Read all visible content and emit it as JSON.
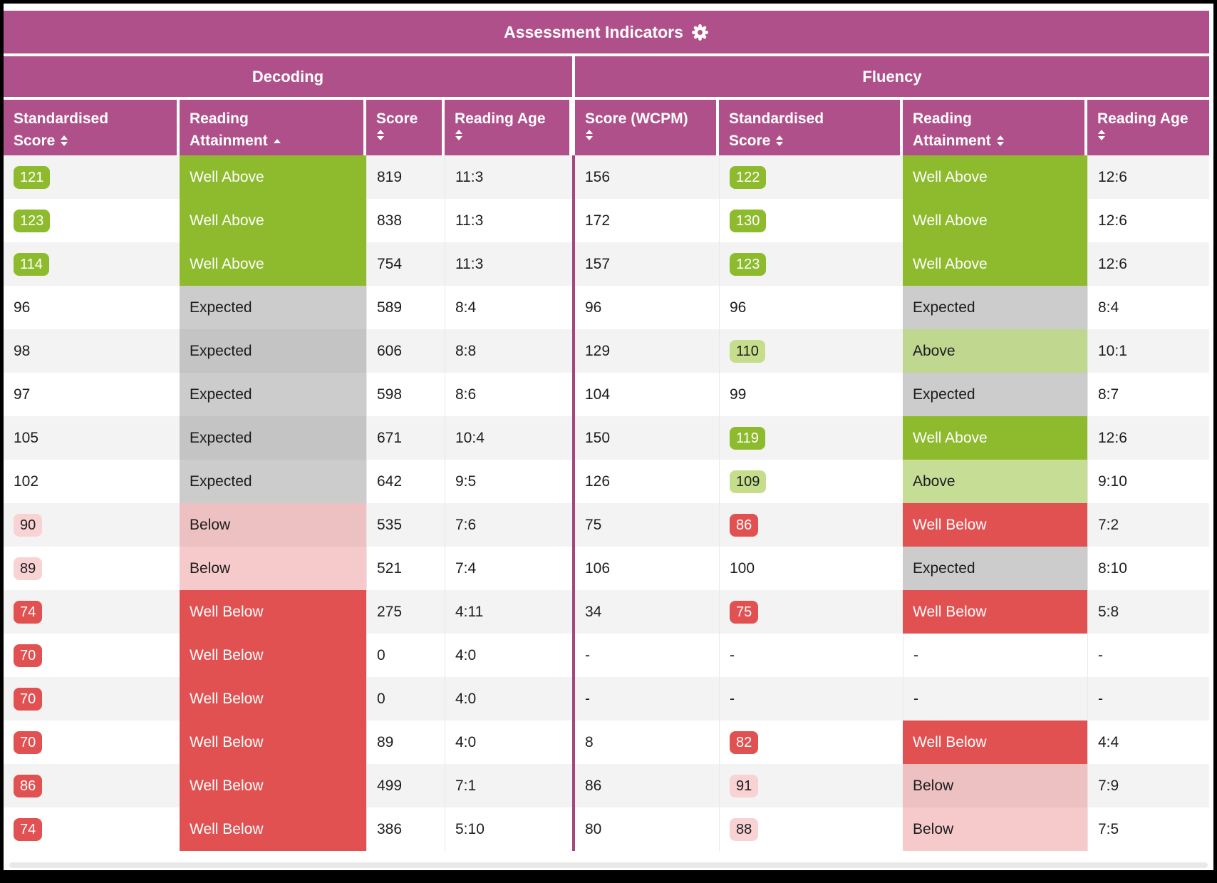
{
  "title": {
    "text": "Assessment Indicators"
  },
  "sections": [
    {
      "label": "Decoding"
    },
    {
      "label": "Fluency"
    }
  ],
  "columns": [
    {
      "key": "decoding-standardised-score",
      "section": "Decoding",
      "line1": "Standardised",
      "line2": "Score",
      "sort": "both"
    },
    {
      "key": "decoding-reading-attainment",
      "section": "Decoding",
      "line1": "Reading",
      "line2": "Attainment",
      "sort": "asc"
    },
    {
      "key": "decoding-score",
      "section": "Decoding",
      "line1": "Score",
      "line2": "",
      "sort": "both"
    },
    {
      "key": "decoding-reading-age",
      "section": "Decoding",
      "line1": "Reading Age",
      "line2": "",
      "sort": "both"
    },
    {
      "key": "fluency-score-wcpm",
      "section": "Fluency",
      "line1": "Score (WCPM)",
      "line2": "",
      "sort": "both"
    },
    {
      "key": "fluency-standardised-score",
      "section": "Fluency",
      "line1": "Standardised",
      "line2": "Score",
      "sort": "both"
    },
    {
      "key": "fluency-reading-attainment",
      "section": "Fluency",
      "line1": "Reading",
      "line2": "Attainment",
      "sort": "both"
    },
    {
      "key": "fluency-reading-age",
      "section": "Fluency",
      "line1": "Reading Age",
      "line2": "",
      "sort": "both"
    }
  ],
  "rows": [
    [
      {
        "t": "121",
        "s": "badge-green"
      },
      {
        "t": "Well Above",
        "s": "fill-green"
      },
      {
        "t": "819"
      },
      {
        "t": "11:3"
      },
      {
        "t": "156"
      },
      {
        "t": "122",
        "s": "badge-green"
      },
      {
        "t": "Well Above",
        "s": "fill-green"
      },
      {
        "t": "12:6"
      }
    ],
    [
      {
        "t": "123",
        "s": "badge-green"
      },
      {
        "t": "Well Above",
        "s": "fill-green"
      },
      {
        "t": "838"
      },
      {
        "t": "11:3"
      },
      {
        "t": "172"
      },
      {
        "t": "130",
        "s": "badge-green"
      },
      {
        "t": "Well Above",
        "s": "fill-green"
      },
      {
        "t": "12:6"
      }
    ],
    [
      {
        "t": "114",
        "s": "badge-green"
      },
      {
        "t": "Well Above",
        "s": "fill-green"
      },
      {
        "t": "754"
      },
      {
        "t": "11:3"
      },
      {
        "t": "157"
      },
      {
        "t": "123",
        "s": "badge-green"
      },
      {
        "t": "Well Above",
        "s": "fill-green"
      },
      {
        "t": "12:6"
      }
    ],
    [
      {
        "t": "96"
      },
      {
        "t": "Expected",
        "s": "fill-gray"
      },
      {
        "t": "589"
      },
      {
        "t": "8:4"
      },
      {
        "t": "96"
      },
      {
        "t": "96"
      },
      {
        "t": "Expected",
        "s": "fill-gray"
      },
      {
        "t": "8:4"
      }
    ],
    [
      {
        "t": "98"
      },
      {
        "t": "Expected",
        "s": "fill-gray"
      },
      {
        "t": "606"
      },
      {
        "t": "8:8"
      },
      {
        "t": "129"
      },
      {
        "t": "110",
        "s": "badge-lightgreen"
      },
      {
        "t": "Above",
        "s": "fill-lightgreen"
      },
      {
        "t": "10:1"
      }
    ],
    [
      {
        "t": "97"
      },
      {
        "t": "Expected",
        "s": "fill-gray"
      },
      {
        "t": "598"
      },
      {
        "t": "8:6"
      },
      {
        "t": "104"
      },
      {
        "t": "99"
      },
      {
        "t": "Expected",
        "s": "fill-gray"
      },
      {
        "t": "8:7"
      }
    ],
    [
      {
        "t": "105"
      },
      {
        "t": "Expected",
        "s": "fill-gray"
      },
      {
        "t": "671"
      },
      {
        "t": "10:4"
      },
      {
        "t": "150"
      },
      {
        "t": "119",
        "s": "badge-green"
      },
      {
        "t": "Well Above",
        "s": "fill-green"
      },
      {
        "t": "12:6"
      }
    ],
    [
      {
        "t": "102"
      },
      {
        "t": "Expected",
        "s": "fill-gray"
      },
      {
        "t": "642"
      },
      {
        "t": "9:5"
      },
      {
        "t": "126"
      },
      {
        "t": "109",
        "s": "badge-lightgreen"
      },
      {
        "t": "Above",
        "s": "fill-lightgreen"
      },
      {
        "t": "9:10"
      }
    ],
    [
      {
        "t": "90",
        "s": "badge-pink"
      },
      {
        "t": "Below",
        "s": "fill-pink"
      },
      {
        "t": "535"
      },
      {
        "t": "7:6"
      },
      {
        "t": "75"
      },
      {
        "t": "86",
        "s": "badge-red"
      },
      {
        "t": "Well Below",
        "s": "fill-red"
      },
      {
        "t": "7:2"
      }
    ],
    [
      {
        "t": "89",
        "s": "badge-pink"
      },
      {
        "t": "Below",
        "s": "fill-pink"
      },
      {
        "t": "521"
      },
      {
        "t": "7:4"
      },
      {
        "t": "106"
      },
      {
        "t": "100"
      },
      {
        "t": "Expected",
        "s": "fill-gray"
      },
      {
        "t": "8:10"
      }
    ],
    [
      {
        "t": "74",
        "s": "badge-red"
      },
      {
        "t": "Well Below",
        "s": "fill-red"
      },
      {
        "t": "275"
      },
      {
        "t": "4:11"
      },
      {
        "t": "34"
      },
      {
        "t": "75",
        "s": "badge-red"
      },
      {
        "t": "Well Below",
        "s": "fill-red"
      },
      {
        "t": "5:8"
      }
    ],
    [
      {
        "t": "70",
        "s": "badge-red"
      },
      {
        "t": "Well Below",
        "s": "fill-red"
      },
      {
        "t": "0"
      },
      {
        "t": "4:0"
      },
      {
        "t": "-"
      },
      {
        "t": "-"
      },
      {
        "t": "-"
      },
      {
        "t": "-"
      }
    ],
    [
      {
        "t": "70",
        "s": "badge-red"
      },
      {
        "t": "Well Below",
        "s": "fill-red"
      },
      {
        "t": "0"
      },
      {
        "t": "4:0"
      },
      {
        "t": "-"
      },
      {
        "t": "-"
      },
      {
        "t": "-"
      },
      {
        "t": "-"
      }
    ],
    [
      {
        "t": "70",
        "s": "badge-red"
      },
      {
        "t": "Well Below",
        "s": "fill-red"
      },
      {
        "t": "89"
      },
      {
        "t": "4:0"
      },
      {
        "t": "8"
      },
      {
        "t": "82",
        "s": "badge-red"
      },
      {
        "t": "Well Below",
        "s": "fill-red"
      },
      {
        "t": "4:4"
      }
    ],
    [
      {
        "t": "86",
        "s": "badge-red"
      },
      {
        "t": "Well Below",
        "s": "fill-red"
      },
      {
        "t": "499"
      },
      {
        "t": "7:1"
      },
      {
        "t": "86"
      },
      {
        "t": "91",
        "s": "badge-pink"
      },
      {
        "t": "Below",
        "s": "fill-pink"
      },
      {
        "t": "7:9"
      }
    ],
    [
      {
        "t": "74",
        "s": "badge-red"
      },
      {
        "t": "Well Below",
        "s": "fill-red"
      },
      {
        "t": "386"
      },
      {
        "t": "5:10"
      },
      {
        "t": "80"
      },
      {
        "t": "88",
        "s": "badge-pink"
      },
      {
        "t": "Below",
        "s": "fill-pink"
      },
      {
        "t": "7:5"
      }
    ]
  ],
  "colors": {
    "accent_magenta": "#b0508a",
    "divider_magenta": "#a4477f",
    "well_above_green": "#8dbb2d",
    "above_lightgreen": "#c6de8c",
    "expected_gray": "#cecece",
    "below_pink": "#f7cbcb",
    "well_below_red": "#e25151",
    "stripe_gray": "#f3f3f3",
    "scroll_track": "#e9e9e9"
  }
}
